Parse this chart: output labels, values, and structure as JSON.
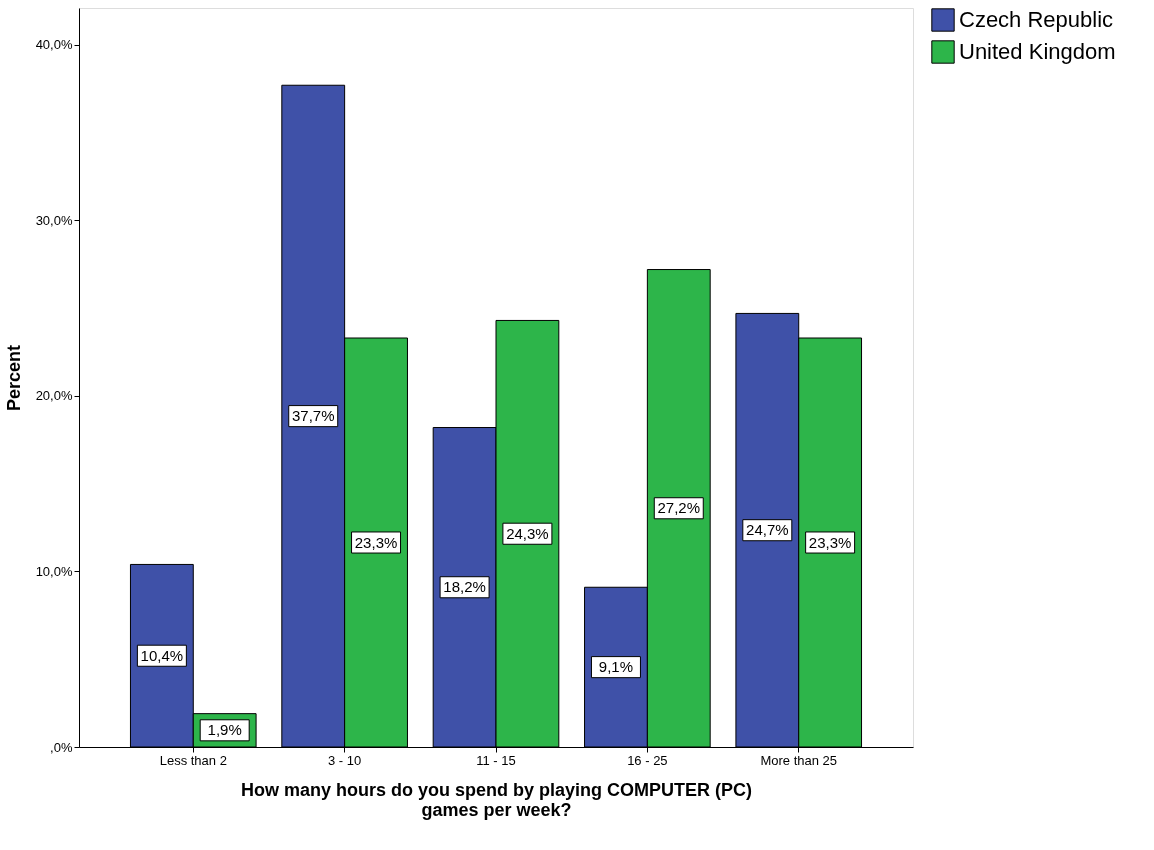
{
  "chart_data": {
    "type": "bar",
    "xlabel": "How many hours do you spend by playing COMPUTER (PC)\ngames per week?",
    "ylabel": "Percent",
    "categories": [
      "Less than 2",
      "3 - 10",
      "11 - 15",
      "16 - 25",
      "More than 25"
    ],
    "series": [
      {
        "name": "Czech Republic",
        "color": "#3f51a8",
        "values": [
          10.4,
          37.7,
          18.2,
          9.1,
          24.7
        ],
        "value_labels": [
          "10,4%",
          "37,7%",
          "18,2%",
          "9,1%",
          "24,7%"
        ]
      },
      {
        "name": "United Kingdom",
        "color": "#2db54a",
        "values": [
          1.9,
          23.3,
          24.3,
          27.2,
          23.3
        ],
        "value_labels": [
          "1,9%",
          "23,3%",
          "24,3%",
          "27,2%",
          "23,3%"
        ]
      }
    ],
    "ylim": [
      0,
      42.1
    ],
    "yticks": [
      {
        "value": 0,
        "label": ",0%"
      },
      {
        "value": 10,
        "label": "10,0%"
      },
      {
        "value": 20,
        "label": "20,0%"
      },
      {
        "value": 30,
        "label": "30,0%"
      },
      {
        "value": 40,
        "label": "40,0%"
      }
    ],
    "grid": false,
    "legend": "top right"
  }
}
